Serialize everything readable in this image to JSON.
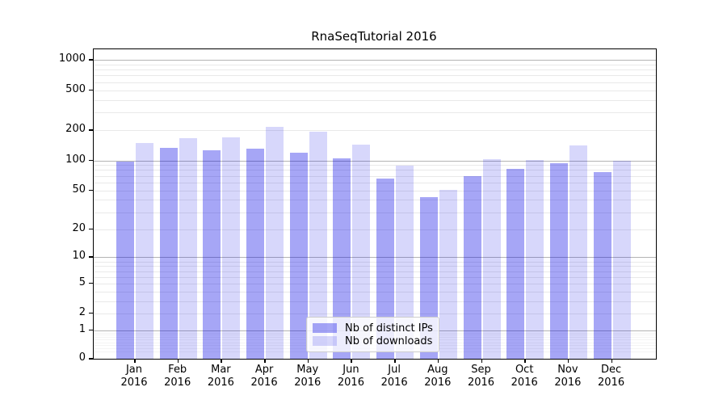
{
  "chart_data": {
    "type": "bar",
    "title": "RnaSeqTutorial 2016",
    "categories": [
      "Jan",
      "Feb",
      "Mar",
      "Apr",
      "May",
      "Jun",
      "Jul",
      "Aug",
      "Sep",
      "Oct",
      "Nov",
      "Dec"
    ],
    "category_year": "2016",
    "series": [
      {
        "name": "Nb of distinct IPs",
        "color": "rgba(0,0,230,0.35)",
        "values": [
          97,
          133,
          126,
          130,
          119,
          105,
          66,
          43,
          70,
          82,
          93,
          76
        ]
      },
      {
        "name": "Nb of downloads",
        "color": "rgba(0,0,230,0.155)",
        "values": [
          150,
          166,
          169,
          216,
          194,
          143,
          89,
          51,
          102,
          101,
          140,
          99
        ]
      }
    ],
    "y_axis": {
      "ticks": [
        0,
        1,
        2,
        5,
        10,
        20,
        50,
        100,
        200,
        500,
        1000
      ],
      "scale": "symlog",
      "range": [
        0,
        1270
      ]
    },
    "x_axis": {
      "label_lines": 2
    },
    "grid": {
      "horizontal": true,
      "vertical": false
    },
    "legend": {
      "position": "lower center"
    }
  },
  "colors": {
    "background": "#ffffff",
    "axis": "#000000",
    "grid_major": "#b3b3b3",
    "grid_minor": "#e9e9e9",
    "grid_subminor": "#f4f4f4",
    "bar_distinct_ips": "#a6a6f6",
    "bar_downloads": "#d8d8fb",
    "legend_border": "#cccccc"
  }
}
